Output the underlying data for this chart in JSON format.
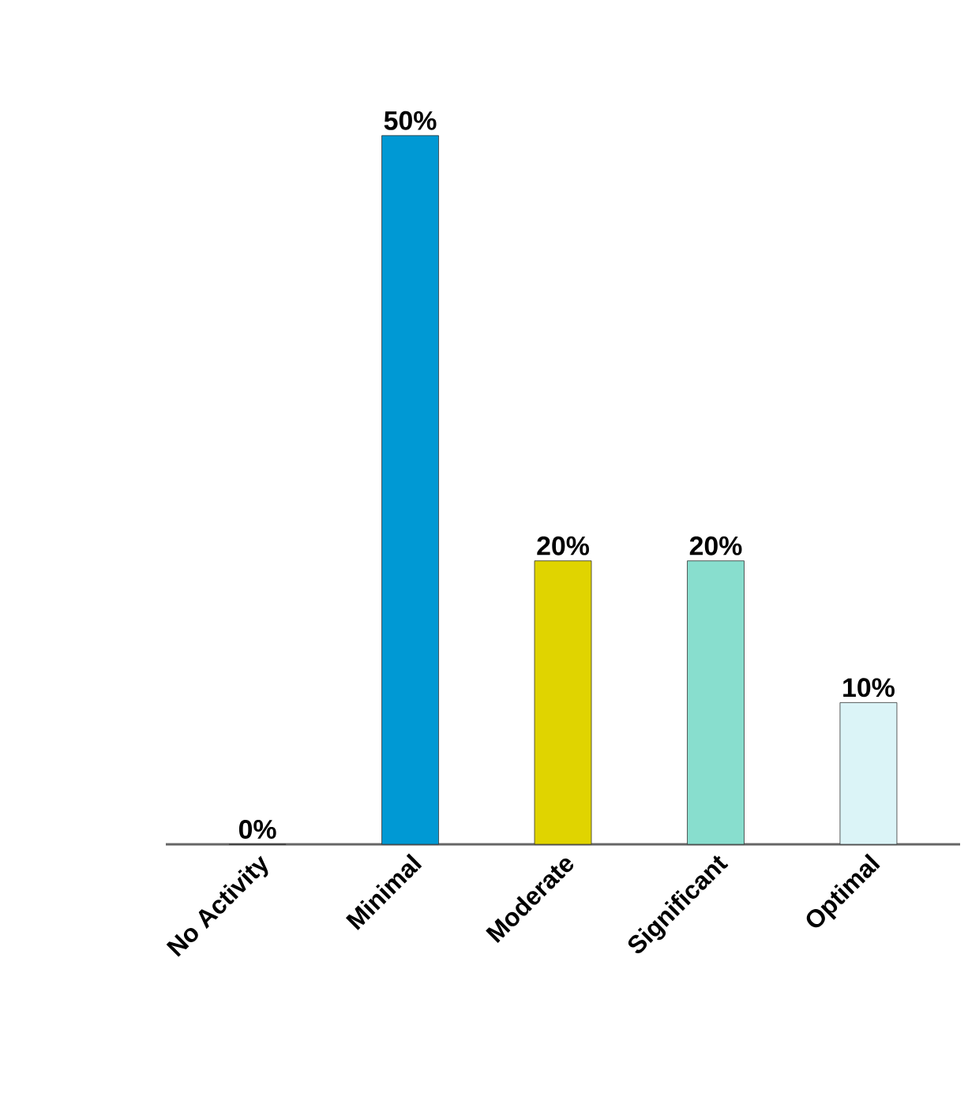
{
  "chart_data": {
    "type": "bar",
    "categories": [
      "No Activity",
      "Minimal",
      "Moderate",
      "Significant",
      "Optimal"
    ],
    "values": [
      0,
      50,
      20,
      20,
      10
    ],
    "colors": [
      "#1f5f99",
      "#0099d4",
      "#e0d400",
      "#88dece",
      "#dbf4f7"
    ],
    "value_labels": [
      "0%",
      "50%",
      "20%",
      "20%",
      "10%"
    ]
  }
}
